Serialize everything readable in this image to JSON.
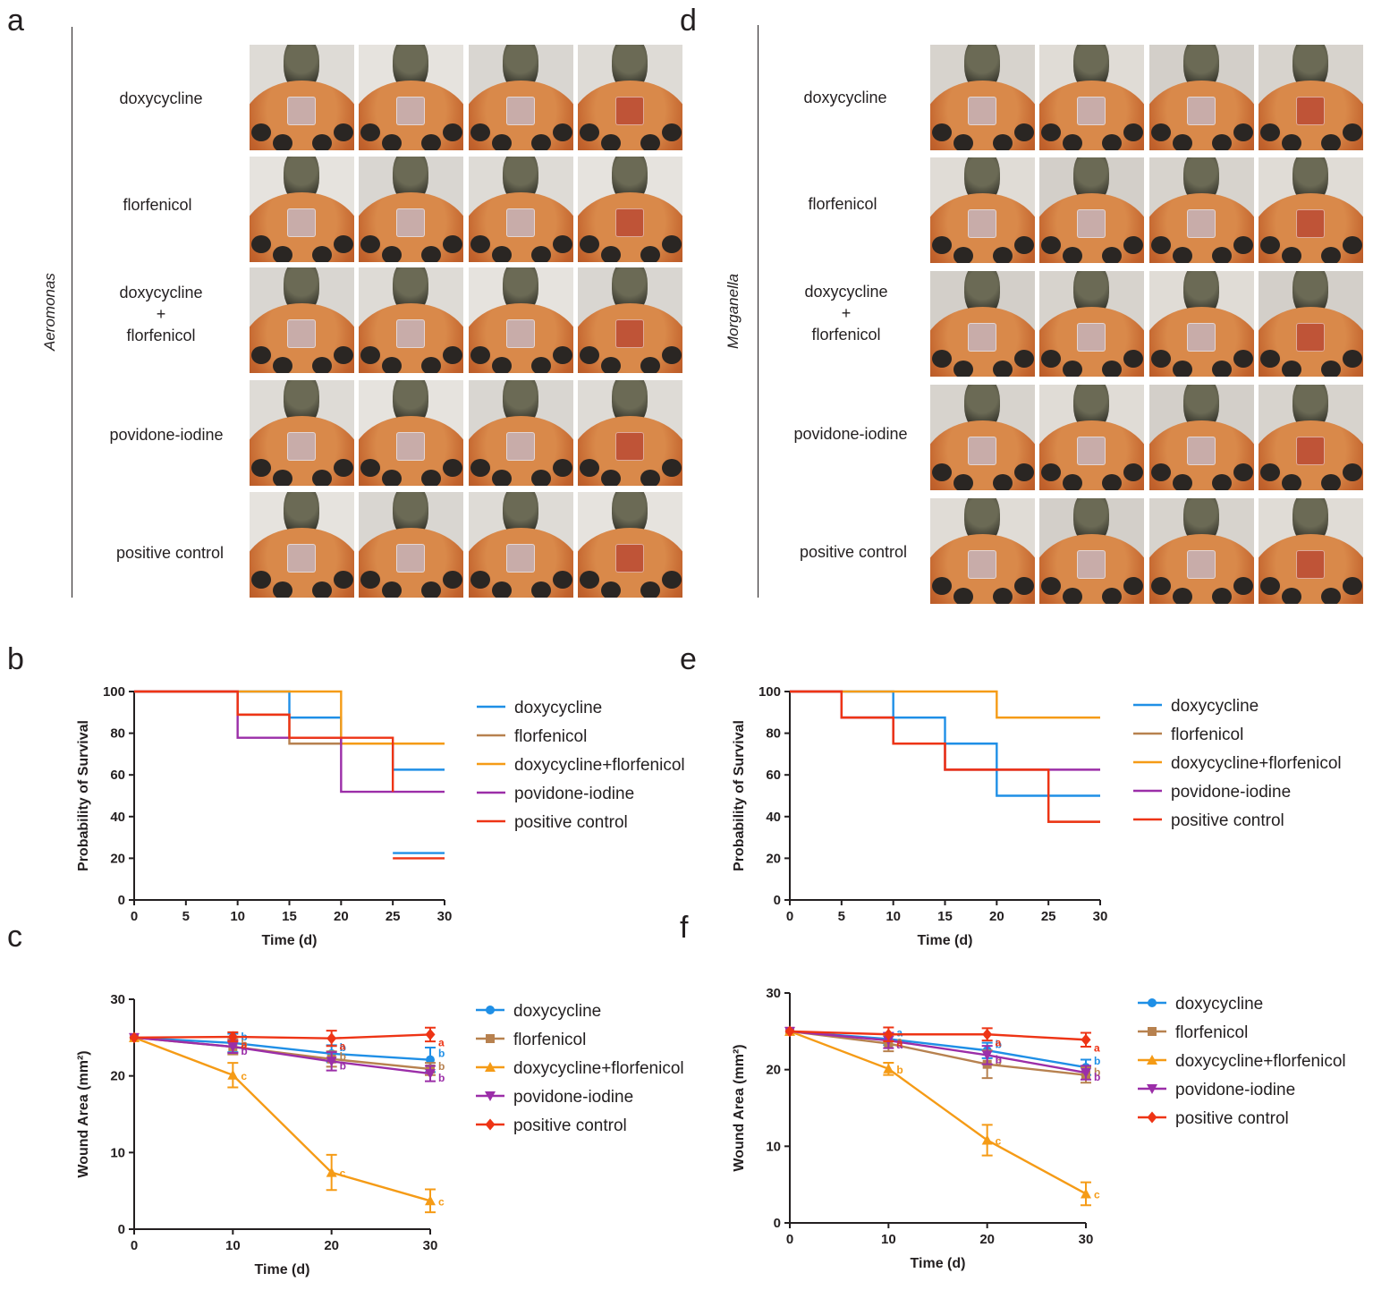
{
  "panels": {
    "a": "a",
    "b": "b",
    "c": "c",
    "d": "d",
    "e": "e",
    "f": "f"
  },
  "photo_panels": [
    {
      "organism": "Aeromonas",
      "rows": [
        "doxycycline",
        "florfenicol",
        "doxycycline\n+\nflorfenicol",
        "povidone-iodine",
        "positive control"
      ]
    },
    {
      "organism": "Morganella",
      "rows": [
        "doxycycline",
        "florfenicol",
        "doxycycline\n+\nflorfenicol",
        "povidone-iodine",
        "positive control"
      ]
    }
  ],
  "colors": {
    "doxycycline": "#1f8fe6",
    "florfenicol": "#b7814f",
    "doxycycline+florfenicol": "#f59b16",
    "povidone-iodine": "#9b2ea8",
    "positive control": "#ee3415"
  },
  "chart_data": [
    {
      "panel": "b",
      "type": "line",
      "step": true,
      "xlabel": "Time (d)",
      "ylabel": "Probability of Survival",
      "xlim": [
        0,
        30
      ],
      "ylim": [
        0,
        100
      ],
      "xticks": [
        "0",
        "5",
        "10",
        "15",
        "20",
        "25",
        "30"
      ],
      "yticks": [
        "0",
        "20",
        "40",
        "60",
        "80",
        "100"
      ],
      "legend_position": "right",
      "series": [
        {
          "name": "doxycycline",
          "segments": [
            [
              [
                0,
                100
              ],
              [
                15,
                100
              ],
              [
                15,
                87.5
              ],
              [
                20,
                87.5
              ],
              [
                20,
                75
              ],
              [
                25,
                75
              ],
              [
                25,
                62.5
              ],
              [
                30,
                62.5
              ]
            ],
            [
              [
                25,
                22.5
              ],
              [
                30,
                22.5
              ]
            ]
          ]
        },
        {
          "name": "florfenicol",
          "segments": [
            [
              [
                0,
                100
              ],
              [
                10,
                100
              ],
              [
                10,
                88.9
              ],
              [
                15,
                88.9
              ],
              [
                15,
                75
              ],
              [
                30,
                75
              ]
            ]
          ]
        },
        {
          "name": "doxycycline+florfenicol",
          "segments": [
            [
              [
                0,
                100
              ],
              [
                20,
                100
              ],
              [
                20,
                75
              ],
              [
                30,
                75
              ]
            ]
          ]
        },
        {
          "name": "povidone-iodine",
          "segments": [
            [
              [
                0,
                100
              ],
              [
                10,
                100
              ],
              [
                10,
                77.8
              ],
              [
                20,
                77.8
              ],
              [
                20,
                51.9
              ],
              [
                30,
                51.9
              ]
            ]
          ]
        },
        {
          "name": "positive control",
          "segments": [
            [
              [
                0,
                100
              ],
              [
                10,
                100
              ],
              [
                10,
                88.9
              ],
              [
                15,
                88.9
              ],
              [
                15,
                77.8
              ],
              [
                25,
                77.8
              ],
              [
                25,
                51.9
              ]
            ],
            [
              [
                25,
                20
              ],
              [
                30,
                20
              ]
            ]
          ]
        }
      ]
    },
    {
      "panel": "c",
      "type": "line",
      "xlabel": "Time (d)",
      "ylabel": "Wound Area (mm²)",
      "xlim": [
        0,
        30
      ],
      "ylim": [
        0,
        30
      ],
      "xticks": [
        "0",
        "10",
        "20",
        "30"
      ],
      "yticks": [
        "0",
        "10",
        "20",
        "30"
      ],
      "legend_position": "right",
      "x": [
        0,
        10,
        20,
        30
      ],
      "series": [
        {
          "name": "doxycycline",
          "marker": "circle",
          "values": [
            25,
            24.3,
            22.9,
            22.1
          ],
          "err": [
            0,
            1.2,
            1.1,
            1.6
          ],
          "letters": [
            "",
            "b",
            "b",
            "b"
          ]
        },
        {
          "name": "florfenicol",
          "marker": "square",
          "values": [
            25,
            23.8,
            22.2,
            20.9
          ],
          "err": [
            0,
            1.0,
            1.0,
            0.8
          ],
          "letters": [
            "",
            "b",
            "b",
            "b"
          ]
        },
        {
          "name": "doxycycline+florfenicol",
          "marker": "triangle-up",
          "values": [
            25,
            20.1,
            7.4,
            3.7
          ],
          "err": [
            0,
            1.6,
            2.3,
            1.5
          ],
          "letters": [
            "",
            "c",
            "c",
            "c"
          ]
        },
        {
          "name": "povidone-iodine",
          "marker": "triangle-down",
          "values": [
            25,
            23.8,
            21.9,
            20.3
          ],
          "err": [
            0,
            0.8,
            1.2,
            1.0
          ],
          "letters": [
            "",
            "b",
            "b",
            "b"
          ]
        },
        {
          "name": "positive control",
          "marker": "diamond",
          "values": [
            25,
            25.1,
            24.9,
            25.4
          ],
          "err": [
            0,
            0.6,
            1.0,
            0.9
          ],
          "letters": [
            "",
            "a",
            "a",
            "a"
          ]
        }
      ]
    },
    {
      "panel": "e",
      "type": "line",
      "step": true,
      "xlabel": "Time (d)",
      "ylabel": "Probability of Survival",
      "xlim": [
        0,
        30
      ],
      "ylim": [
        0,
        100
      ],
      "xticks": [
        "0",
        "5",
        "10",
        "15",
        "20",
        "25",
        "30"
      ],
      "yticks": [
        "0",
        "20",
        "40",
        "60",
        "80",
        "100"
      ],
      "legend_position": "right",
      "series": [
        {
          "name": "doxycycline",
          "segments": [
            [
              [
                0,
                100
              ],
              [
                10,
                100
              ],
              [
                10,
                87.5
              ],
              [
                15,
                87.5
              ],
              [
                15,
                75
              ],
              [
                20,
                75
              ],
              [
                20,
                50
              ],
              [
                30,
                50
              ]
            ]
          ]
        },
        {
          "name": "florfenicol",
          "segments": [
            [
              [
                0,
                100
              ],
              [
                5,
                100
              ],
              [
                5,
                87.5
              ],
              [
                10,
                87.5
              ],
              [
                10,
                75
              ],
              [
                15,
                75
              ],
              [
                15,
                62.5
              ],
              [
                25,
                62.5
              ],
              [
                25,
                37.5
              ],
              [
                30,
                37.5
              ]
            ]
          ]
        },
        {
          "name": "doxycycline+florfenicol",
          "segments": [
            [
              [
                0,
                100
              ],
              [
                20,
                100
              ],
              [
                20,
                87.5
              ],
              [
                30,
                87.5
              ]
            ]
          ]
        },
        {
          "name": "povidone-iodine",
          "segments": [
            [
              [
                0,
                100
              ],
              [
                5,
                100
              ],
              [
                5,
                87.5
              ],
              [
                10,
                87.5
              ],
              [
                10,
                75
              ],
              [
                15,
                75
              ],
              [
                15,
                62.5
              ],
              [
                30,
                62.5
              ]
            ]
          ]
        },
        {
          "name": "positive control",
          "segments": [
            [
              [
                0,
                100
              ],
              [
                5,
                100
              ],
              [
                5,
                87.5
              ],
              [
                10,
                87.5
              ],
              [
                10,
                75
              ],
              [
                15,
                75
              ],
              [
                15,
                62.5
              ],
              [
                25,
                62.5
              ],
              [
                25,
                37.5
              ],
              [
                30,
                37.5
              ]
            ]
          ]
        }
      ]
    },
    {
      "panel": "f",
      "type": "line",
      "xlabel": "Time (d)",
      "ylabel": "Wound Area (mm²)",
      "xlim": [
        0,
        30
      ],
      "ylim": [
        0,
        30
      ],
      "xticks": [
        "0",
        "10",
        "20",
        "30"
      ],
      "yticks": [
        "0",
        "10",
        "20",
        "30"
      ],
      "legend_position": "right",
      "x": [
        0,
        10,
        20,
        30
      ],
      "series": [
        {
          "name": "doxycycline",
          "marker": "circle",
          "values": [
            25,
            24.0,
            22.5,
            20.3
          ],
          "err": [
            0,
            0.8,
            1.0,
            1.0
          ],
          "letters": [
            "",
            "a",
            "b",
            "b"
          ]
        },
        {
          "name": "florfenicol",
          "marker": "square",
          "values": [
            25,
            23.4,
            20.7,
            19.3
          ],
          "err": [
            0,
            1.0,
            1.8,
            1.0
          ],
          "letters": [
            "",
            "a",
            "b",
            "b"
          ]
        },
        {
          "name": "doxycycline+florfenicol",
          "marker": "triangle-up",
          "values": [
            25,
            20.1,
            10.8,
            3.8
          ],
          "err": [
            0,
            0.8,
            2.0,
            1.5
          ],
          "letters": [
            "",
            "b",
            "c",
            "c"
          ]
        },
        {
          "name": "povidone-iodine",
          "marker": "triangle-down",
          "values": [
            25,
            23.8,
            21.9,
            19.6
          ],
          "err": [
            0,
            1.0,
            1.2,
            0.9
          ],
          "letters": [
            "",
            "a",
            "b",
            "b"
          ]
        },
        {
          "name": "positive control",
          "marker": "diamond",
          "values": [
            25,
            24.6,
            24.6,
            23.9
          ],
          "err": [
            0,
            0.9,
            0.8,
            0.9
          ],
          "letters": [
            "",
            "a",
            "a",
            "a"
          ]
        }
      ]
    }
  ]
}
